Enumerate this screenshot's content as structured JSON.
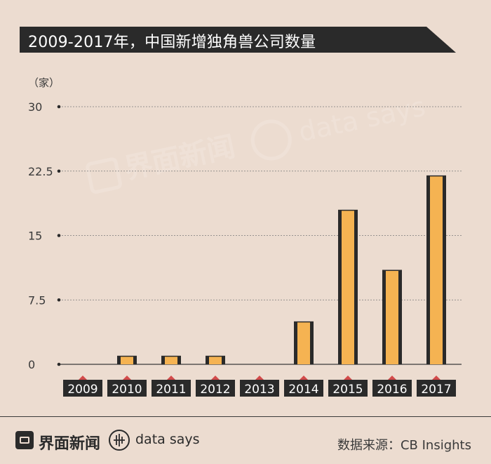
{
  "title": "2009-2017年，中国新增独角兽公司数量",
  "unit_label": "（家）",
  "watermark": {
    "brand": "界面新闻",
    "secondary": "data says"
  },
  "footer": {
    "logo_text": "界面新闻",
    "datasays_text": "data says",
    "source": "数据来源：CB Insights"
  },
  "colors": {
    "background": "#ecdcd0",
    "bar_fill": "#f5b352",
    "bar_edge": "#2a2a2a",
    "banner": "#2a2a2a",
    "label_box": "#2a2a2a",
    "marker": "#d24a4a",
    "grid": "#7a7a7a"
  },
  "chart_data": {
    "type": "bar",
    "categories": [
      "2009",
      "2010",
      "2011",
      "2012",
      "2013",
      "2014",
      "2015",
      "2016",
      "2017"
    ],
    "values": [
      0,
      1,
      1,
      1,
      0,
      5,
      18,
      11,
      22
    ],
    "yticks": [
      "0",
      "7.5",
      "15",
      "22.5",
      "30"
    ],
    "ytick_values": [
      0,
      7.5,
      15,
      22.5,
      30
    ],
    "ylim": [
      0,
      30
    ],
    "ylabel": "（家）",
    "grid": true
  }
}
